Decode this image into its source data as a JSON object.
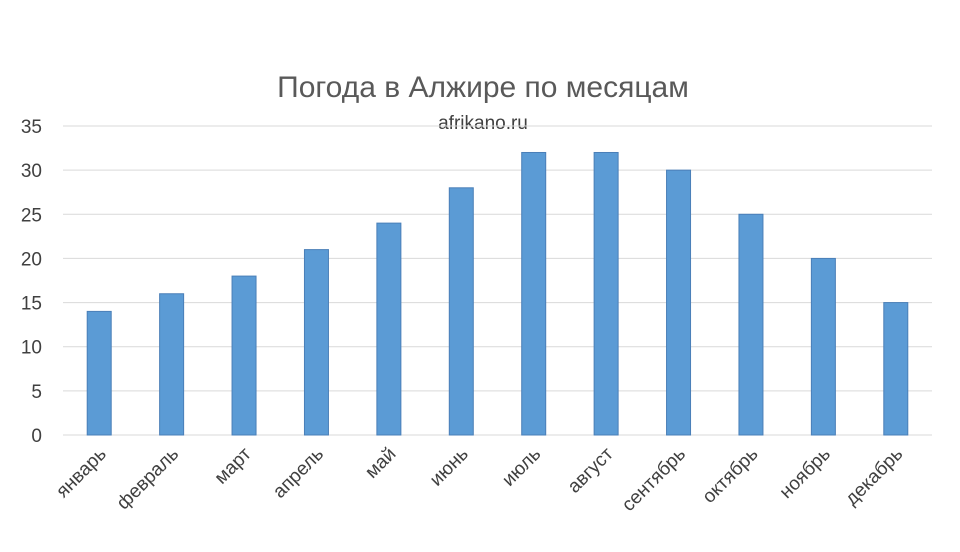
{
  "chart_data": {
    "type": "bar",
    "title": "Погода в Алжире по месяцам",
    "watermark": "afrikano.ru",
    "categories": [
      "январь",
      "февраль",
      "март",
      "апрель",
      "май",
      "июнь",
      "июль",
      "август",
      "сентябрь",
      "октябрь",
      "ноябрь",
      "декабрь"
    ],
    "values": [
      14,
      16,
      18,
      21,
      24,
      28,
      32,
      32,
      30,
      25,
      20,
      15
    ],
    "ylim": [
      0,
      35
    ],
    "yticks": [
      0,
      5,
      10,
      15,
      20,
      25,
      30,
      35
    ],
    "xlabel": "",
    "ylabel": "",
    "grid": true,
    "legend": "none",
    "bar_color": "#5b9bd5"
  }
}
